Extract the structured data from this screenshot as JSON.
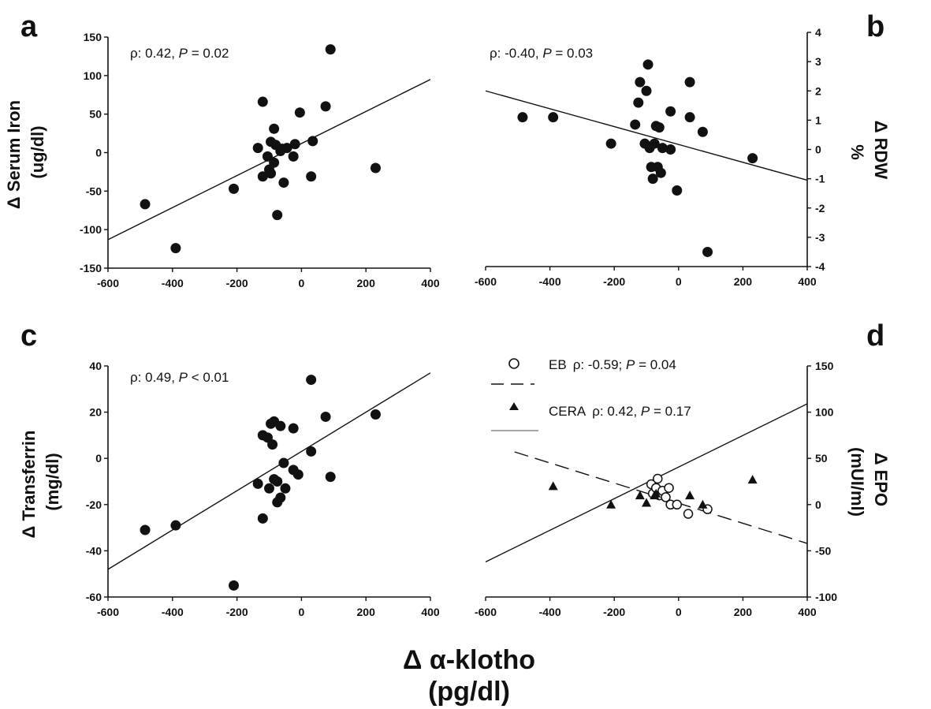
{
  "shared_xlabel": {
    "line1": "Δ α-klotho",
    "line2": "(pg/dl)"
  },
  "colors": {
    "foreground": "#111111",
    "background": "#ffffff",
    "cera_line": "#111111"
  },
  "chart_data": [
    {
      "panel": "a",
      "type": "scatter",
      "annotation": {
        "prefix": "ρ: 0.42, ",
        "p_symbol": "P",
        "suffix": " = 0.02"
      },
      "xlim": [
        -600,
        400
      ],
      "xticks": [
        -600,
        -400,
        -200,
        0,
        200,
        400
      ],
      "xtick_labels": [
        "-600",
        "-400",
        "-200",
        "0",
        "200",
        "400"
      ],
      "ylim": [
        -150,
        150
      ],
      "yticks": [
        -150,
        -100,
        -50,
        0,
        50,
        100,
        150
      ],
      "ytick_labels": [
        "-150",
        "-100",
        "-50",
        "0",
        "50",
        "100",
        "150"
      ],
      "yaxis_side": "left",
      "ylabel": [
        "Δ Serum Iron",
        "(ug/dl)"
      ],
      "points": [
        [
          -485,
          -67
        ],
        [
          -390,
          -124
        ],
        [
          -210,
          -47
        ],
        [
          -120,
          66
        ],
        [
          -135,
          6
        ],
        [
          -120,
          -31
        ],
        [
          -105,
          -5
        ],
        [
          -100,
          -22
        ],
        [
          -95,
          14
        ],
        [
          -95,
          -27
        ],
        [
          -85,
          31
        ],
        [
          -85,
          -13
        ],
        [
          -80,
          10
        ],
        [
          -75,
          -81
        ],
        [
          -65,
          2
        ],
        [
          -60,
          5
        ],
        [
          -55,
          -39
        ],
        [
          -45,
          6
        ],
        [
          -25,
          -5
        ],
        [
          -20,
          11
        ],
        [
          -5,
          52
        ],
        [
          30,
          -31
        ],
        [
          35,
          15
        ],
        [
          75,
          60
        ],
        [
          90,
          134
        ],
        [
          230,
          -20
        ]
      ],
      "fit_line": [
        [
          -600,
          -113
        ],
        [
          400,
          95
        ]
      ]
    },
    {
      "panel": "b",
      "type": "scatter",
      "annotation": {
        "prefix": "ρ: -0.40, ",
        "p_symbol": "P",
        "suffix": " = 0.03"
      },
      "xlim": [
        -600,
        400
      ],
      "xticks": [
        -600,
        -400,
        -200,
        0,
        200,
        400
      ],
      "xtick_labels": [
        "-600",
        "-400",
        "-200",
        "0",
        "200",
        "400"
      ],
      "ylim": [
        -4,
        4
      ],
      "yticks": [
        -4,
        -3,
        -2,
        -1,
        0,
        1,
        2,
        3,
        4
      ],
      "ytick_labels": [
        "-4",
        "-3",
        "-2",
        "-1",
        "0",
        "1",
        "2",
        "3",
        "4"
      ],
      "yaxis_side": "right",
      "ylabel": [
        "Δ RDW",
        "%"
      ],
      "points": [
        [
          -485,
          1.1
        ],
        [
          -390,
          1.1
        ],
        [
          -210,
          0.2
        ],
        [
          -135,
          0.85
        ],
        [
          -125,
          1.6
        ],
        [
          -120,
          2.3
        ],
        [
          -105,
          0.2
        ],
        [
          -100,
          2.0
        ],
        [
          -95,
          2.9
        ],
        [
          -90,
          0.05
        ],
        [
          -85,
          -0.6
        ],
        [
          -80,
          -1.0
        ],
        [
          -75,
          0.2
        ],
        [
          -70,
          0.8
        ],
        [
          -65,
          -0.6
        ],
        [
          -60,
          0.75
        ],
        [
          -55,
          -0.8
        ],
        [
          -50,
          0.05
        ],
        [
          -25,
          1.3
        ],
        [
          -25,
          0
        ],
        [
          -5,
          -1.4
        ],
        [
          35,
          2.3
        ],
        [
          35,
          1.1
        ],
        [
          75,
          0.6
        ],
        [
          90,
          -3.5
        ],
        [
          230,
          -0.3
        ]
      ],
      "fit_line": [
        [
          -600,
          2.0
        ],
        [
          400,
          -1.05
        ]
      ]
    },
    {
      "panel": "c",
      "type": "scatter",
      "annotation": {
        "prefix": "ρ: 0.49, ",
        "p_symbol": "P",
        "suffix": " < 0.01"
      },
      "xlim": [
        -600,
        400
      ],
      "xticks": [
        -600,
        -400,
        -200,
        0,
        200,
        400
      ],
      "xtick_labels": [
        "-600",
        "-400",
        "-200",
        "0",
        "200",
        "400"
      ],
      "ylim": [
        -60,
        40
      ],
      "yticks": [
        -60,
        -40,
        -20,
        0,
        20,
        40
      ],
      "ytick_labels": [
        "-60",
        "-40",
        "-20",
        "0",
        "20",
        "40"
      ],
      "yaxis_side": "left",
      "ylabel": [
        "Δ Transferrin",
        "(mg/dl)"
      ],
      "points": [
        [
          -485,
          -31
        ],
        [
          -390,
          -29
        ],
        [
          -210,
          -55
        ],
        [
          -135,
          -11
        ],
        [
          -120,
          10
        ],
        [
          -120,
          -26
        ],
        [
          -105,
          9
        ],
        [
          -100,
          -13
        ],
        [
          -95,
          15
        ],
        [
          -90,
          6
        ],
        [
          -85,
          16
        ],
        [
          -85,
          -9
        ],
        [
          -75,
          -19
        ],
        [
          -75,
          -10
        ],
        [
          -65,
          14
        ],
        [
          -65,
          -17
        ],
        [
          -55,
          -2
        ],
        [
          -50,
          -13
        ],
        [
          -25,
          13
        ],
        [
          -25,
          -5
        ],
        [
          -10,
          -7
        ],
        [
          30,
          34
        ],
        [
          30,
          3
        ],
        [
          75,
          18
        ],
        [
          90,
          -8
        ],
        [
          230,
          19
        ]
      ],
      "fit_line": [
        [
          -600,
          -48
        ],
        [
          400,
          37
        ]
      ]
    },
    {
      "panel": "d",
      "type": "scatter",
      "xlim": [
        -600,
        400
      ],
      "xticks": [
        -600,
        -400,
        -200,
        0,
        200,
        400
      ],
      "xtick_labels": [
        "-600",
        "-400",
        "-200",
        "0",
        "200",
        "400"
      ],
      "ylim": [
        -100,
        150
      ],
      "yticks": [
        -100,
        -50,
        0,
        50,
        100,
        150
      ],
      "ytick_labels": [
        "-100",
        "-50",
        "0",
        "50",
        "100",
        "150"
      ],
      "yaxis_side": "right",
      "ylabel": [
        "Δ EPO",
        "(mUI/ml)"
      ],
      "legend_position": "top",
      "series": [
        {
          "name": "EB",
          "marker": "open-circle",
          "line_style": "dashed",
          "stat": {
            "prefix": "ρ: -0.59; ",
            "p_symbol": "P",
            "suffix": " = 0.04"
          },
          "points": [
            [
              -85,
              22
            ],
            [
              -80,
              12
            ],
            [
              -70,
              18
            ],
            [
              -65,
              28
            ],
            [
              -60,
              10
            ],
            [
              -50,
              15
            ],
            [
              -40,
              8
            ],
            [
              -30,
              18
            ],
            [
              -25,
              0
            ],
            [
              -5,
              0
            ],
            [
              30,
              -10
            ],
            [
              90,
              -5
            ]
          ],
          "fit_line": [
            [
              -510,
              57
            ],
            [
              400,
              -42
            ]
          ]
        },
        {
          "name": "CERA",
          "marker": "triangle",
          "line_style": "solid",
          "stat": {
            "prefix": "ρ: 0.42, ",
            "p_symbol": "P",
            "suffix": " = 0.17"
          },
          "points": [
            [
              -390,
              20
            ],
            [
              -210,
              0
            ],
            [
              -120,
              10
            ],
            [
              -100,
              2
            ],
            [
              -75,
              10
            ],
            [
              -70,
              12
            ],
            [
              35,
              10
            ],
            [
              75,
              0
            ],
            [
              230,
              27
            ]
          ],
          "fit_line": [
            [
              -600,
              -62
            ],
            [
              400,
              109
            ]
          ]
        }
      ]
    }
  ]
}
